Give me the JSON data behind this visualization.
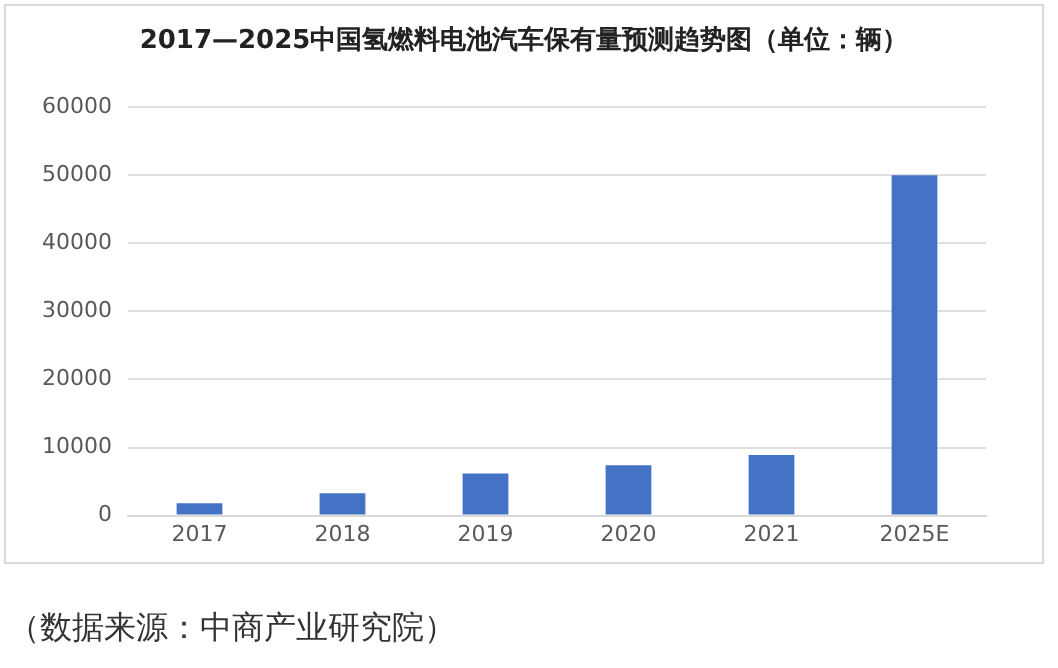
{
  "chart_data": {
    "type": "bar",
    "title": "2017—2025中国氢燃料电池汽车保有量预测趋势图（单位：辆）",
    "categories": [
      "2017",
      "2018",
      "2019",
      "2020",
      "2021",
      "2025E"
    ],
    "values": [
      1800,
      3300,
      6200,
      7400,
      8900,
      50000
    ],
    "color": "#4472c4",
    "ylim": [
      0,
      60000
    ],
    "yticks": [
      0,
      10000,
      20000,
      30000,
      40000,
      50000,
      60000
    ],
    "grid": "y",
    "legend": false,
    "annotations": [
      "（数据来源：中商产业研究院）"
    ]
  }
}
